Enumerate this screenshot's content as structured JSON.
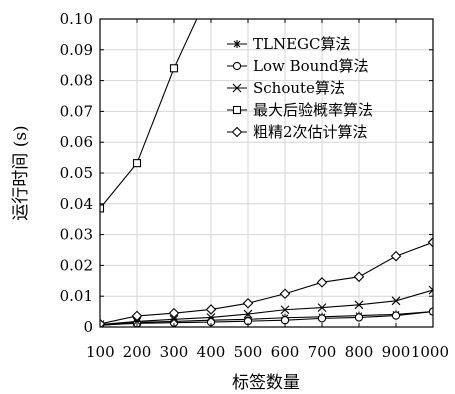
{
  "chart_data": {
    "type": "line",
    "title": "",
    "xlabel": "标签数量",
    "ylabel": "运行时间 (s)",
    "x": [
      100,
      200,
      300,
      400,
      500,
      600,
      700,
      800,
      900,
      1000
    ],
    "x_tick_labels": [
      "100",
      "200",
      "300",
      "400",
      "500",
      "600",
      "700",
      "800",
      "900",
      "1000"
    ],
    "y_tick_labels": [
      "0",
      "0.01",
      "0.02",
      "0.03",
      "0.04",
      "0.05",
      "0.06",
      "0.07",
      "0.08",
      "0.09",
      "0.10"
    ],
    "xlim": [
      100,
      1000
    ],
    "ylim": [
      0,
      0.1
    ],
    "grid": true,
    "legend_position": "top-right",
    "series": [
      {
        "name": "TLNEGC算法",
        "marker": "asterisk",
        "values": [
          0.0005,
          0.0015,
          0.0018,
          0.0022,
          0.0025,
          0.003,
          0.0033,
          0.0037,
          0.0041,
          0.005
        ]
      },
      {
        "name": "Low Bound算法",
        "marker": "circle",
        "values": [
          0.0006,
          0.0012,
          0.0014,
          0.0016,
          0.0019,
          0.0022,
          0.0028,
          0.0031,
          0.0037,
          0.005
        ]
      },
      {
        "name": "Schoute算法",
        "marker": "x",
        "values": [
          0.0008,
          0.0018,
          0.0025,
          0.0031,
          0.0042,
          0.0056,
          0.0063,
          0.0072,
          0.0085,
          0.012
        ]
      },
      {
        "name": "最大后验概率算法",
        "marker": "square",
        "values": [
          0.0385,
          0.0532,
          0.084,
          0.11,
          null,
          null,
          null,
          null,
          null,
          null
        ]
      },
      {
        "name": "粗精2次估计算法",
        "marker": "diamond",
        "values": [
          0.001,
          0.0036,
          0.0045,
          0.0057,
          0.0077,
          0.0108,
          0.0145,
          0.0163,
          0.023,
          0.0275
        ]
      }
    ]
  }
}
